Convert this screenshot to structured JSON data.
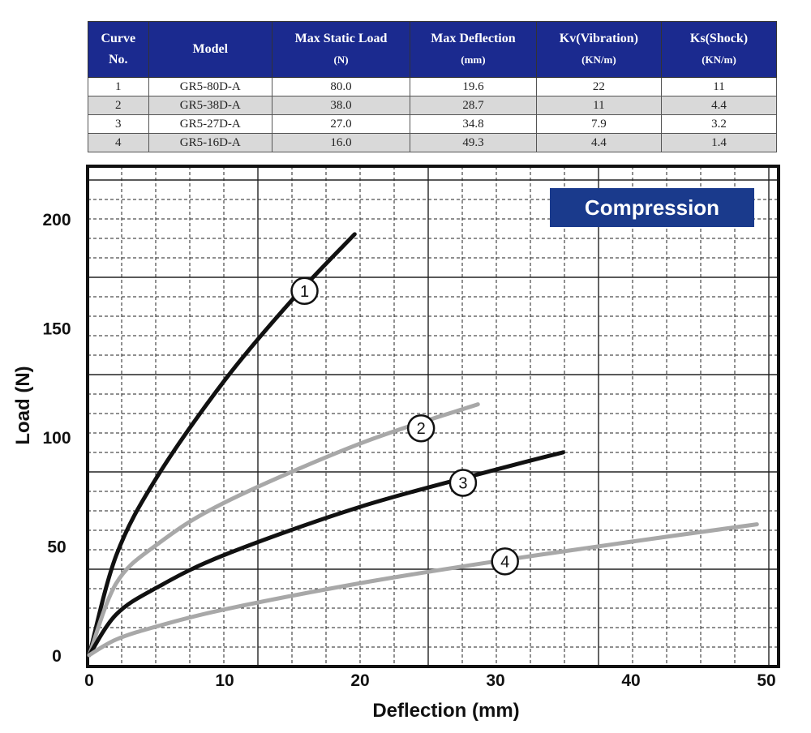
{
  "table": {
    "headers": [
      {
        "title": "Curve",
        "unit": "No."
      },
      {
        "title": "Model",
        "unit": ""
      },
      {
        "title": "Max Static Load",
        "unit": "(N)"
      },
      {
        "title": "Max Deflection",
        "unit": "(mm)"
      },
      {
        "title": "Kv(Vibration)",
        "unit": "(KN/m)"
      },
      {
        "title": "Ks(Shock)",
        "unit": "(KN/m)"
      }
    ],
    "rows": [
      [
        "1",
        "GR5-80D-A",
        "80.0",
        "19.6",
        "22",
        "11"
      ],
      [
        "2",
        "GR5-38D-A",
        "38.0",
        "28.7",
        "11",
        "4.4"
      ],
      [
        "3",
        "GR5-27D-A",
        "27.0",
        "34.8",
        "7.9",
        "3.2"
      ],
      [
        "4",
        "GR5-16D-A",
        "16.0",
        "49.3",
        "4.4",
        "1.4"
      ]
    ]
  },
  "chart_data": {
    "type": "line",
    "title": "Compression",
    "xlabel": "Deflection (mm)",
    "ylabel": "Load (N)",
    "xlim": [
      0,
      50
    ],
    "ylim": [
      0,
      200
    ],
    "xticks": [
      "0",
      "10",
      "20",
      "30",
      "40",
      "50"
    ],
    "yticks": [
      "0",
      "50",
      "100",
      "150",
      "200"
    ],
    "grid": true,
    "title_box_color": "#1a3a8c",
    "series": [
      {
        "name": "1",
        "color": "#111111",
        "x": [
          0,
          2,
          5,
          10,
          15,
          19.6
        ],
        "y": [
          0,
          45.8,
          81.6,
          126,
          163,
          193
        ],
        "label_at": [
          15.9,
          167
        ]
      },
      {
        "name": "2",
        "color": "#a8a8a8",
        "x": [
          0,
          2,
          5,
          10,
          20,
          28.7
        ],
        "y": [
          0,
          33,
          50.7,
          70,
          97,
          115
        ],
        "label_at": [
          24.5,
          104
        ]
      },
      {
        "name": "3",
        "color": "#111111",
        "x": [
          0,
          2,
          5,
          10,
          20,
          30,
          35
        ],
        "y": [
          0,
          18.7,
          31,
          46,
          68,
          85,
          93
        ],
        "label_at": [
          27.6,
          79
        ]
      },
      {
        "name": "4",
        "color": "#a8a8a8",
        "x": [
          0,
          2,
          5,
          10,
          20,
          30,
          40,
          49.3
        ],
        "y": [
          0,
          7.2,
          13.2,
          21,
          33,
          43,
          52,
          60
        ],
        "label_at": [
          30.7,
          43
        ]
      }
    ]
  }
}
